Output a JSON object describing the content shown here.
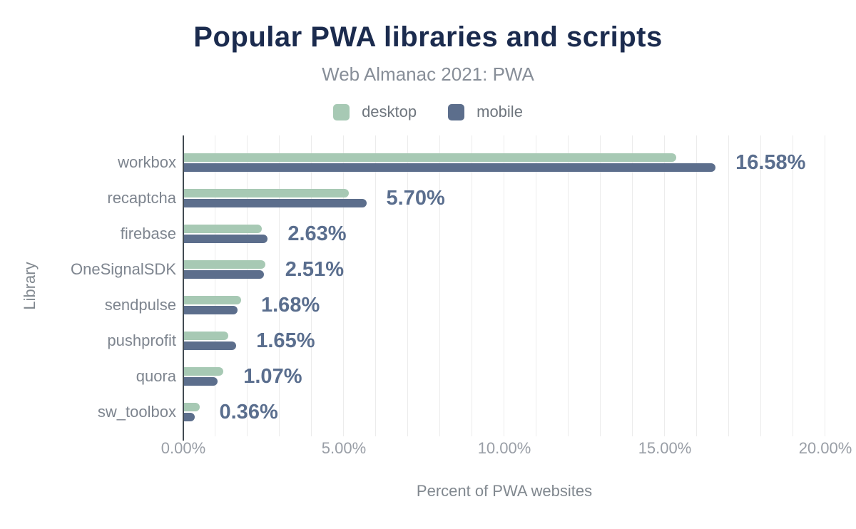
{
  "header": {
    "title": "Popular PWA libraries and scripts",
    "subtitle": "Web Almanac 2021: PWA"
  },
  "legend": {
    "items": [
      {
        "label": "desktop",
        "color": "#a7c9b4"
      },
      {
        "label": "mobile",
        "color": "#5c6e8c"
      }
    ]
  },
  "axes": {
    "x_title": "Percent of PWA websites",
    "y_title": "Library"
  },
  "colors": {
    "desktop_bar": "#a7c9b4",
    "mobile_bar": "#5c6e8c",
    "title_text": "#1b2b4e",
    "data_label_text": "#5a6e8e",
    "axis_line": "#424a52",
    "gridline": "#ececec"
  },
  "chart_data": {
    "type": "bar",
    "orientation": "horizontal",
    "title": "Popular PWA libraries and scripts",
    "subtitle": "Web Almanac 2021: PWA",
    "xlabel": "Percent of PWA websites",
    "ylabel": "Library",
    "categories": [
      "workbox",
      "recaptcha",
      "firebase",
      "OneSignalSDK",
      "sendpulse",
      "pushprofit",
      "quora",
      "sw_toolbox"
    ],
    "series": [
      {
        "name": "desktop",
        "values": [
          15.35,
          5.15,
          2.45,
          2.55,
          1.8,
          1.4,
          1.25,
          0.5
        ],
        "values_note": "estimated from bar lengths (not labeled in chart)"
      },
      {
        "name": "mobile",
        "values": [
          16.58,
          5.7,
          2.63,
          2.51,
          1.68,
          1.65,
          1.07,
          0.36
        ]
      }
    ],
    "data_labels": [
      "16.58%",
      "5.70%",
      "2.63%",
      "2.51%",
      "1.68%",
      "1.65%",
      "1.07%",
      "0.36%"
    ],
    "data_labels_series": "mobile",
    "xlim": [
      0,
      20
    ],
    "x_tick_values": [
      0,
      5,
      10,
      15,
      20
    ],
    "x_tick_labels": [
      "0.00%",
      "5.00%",
      "10.00%",
      "15.00%",
      "20.00%"
    ],
    "grid": "vertical gridlines every 1%",
    "legend_position": "top-center"
  }
}
